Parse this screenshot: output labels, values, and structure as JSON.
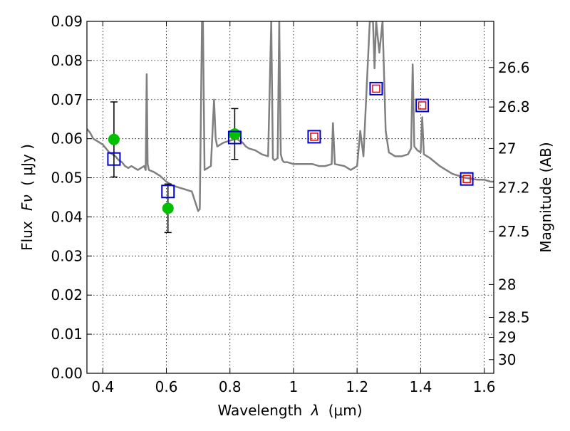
{
  "chart_data": {
    "type": "line",
    "xlabel": "Wavelength",
    "xlabel_symbol": "λ",
    "xlabel_unit": "(μm)",
    "ylabel": "Flux",
    "ylabel_symbol": "Fν",
    "ylabel_unit": "( μJy )",
    "y2label": "Magnitude (AB)",
    "xlim": [
      0.35,
      1.63
    ],
    "ylim": [
      0.0,
      0.09
    ],
    "grid": true,
    "x_ticks": [
      {
        "value": 0.4,
        "label": "0.4"
      },
      {
        "value": 0.6,
        "label": "0.6"
      },
      {
        "value": 0.8,
        "label": "0.8"
      },
      {
        "value": 1.0,
        "label": "1"
      },
      {
        "value": 1.2,
        "label": "1.2"
      },
      {
        "value": 1.4,
        "label": "1.4"
      },
      {
        "value": 1.6,
        "label": "1.6"
      }
    ],
    "y_ticks": [
      {
        "value": 0.0,
        "label": "0.00"
      },
      {
        "value": 0.01,
        "label": "0.01"
      },
      {
        "value": 0.02,
        "label": "0.02"
      },
      {
        "value": 0.03,
        "label": "0.03"
      },
      {
        "value": 0.04,
        "label": "0.04"
      },
      {
        "value": 0.05,
        "label": "0.05"
      },
      {
        "value": 0.06,
        "label": "0.06"
      },
      {
        "value": 0.07,
        "label": "0.07"
      },
      {
        "value": 0.08,
        "label": "0.08"
      },
      {
        "value": 0.09,
        "label": "0.09"
      }
    ],
    "y2_ticks": [
      {
        "flux": 0.0782,
        "label": "26.6"
      },
      {
        "flux": 0.0681,
        "label": "26.8"
      },
      {
        "flux": 0.0575,
        "label": "27"
      },
      {
        "flux": 0.0475,
        "label": "27.2"
      },
      {
        "flux": 0.0363,
        "label": "27.5"
      },
      {
        "flux": 0.0227,
        "label": "28"
      },
      {
        "flux": 0.0143,
        "label": "28.5"
      },
      {
        "flux": 0.0092,
        "label": "29"
      },
      {
        "flux": 0.0035,
        "label": "30"
      }
    ],
    "colors": {
      "model": "#808080",
      "observed": "#00c000",
      "model_phot": "#0000cc",
      "model_phot_inner": "#ee0000",
      "errorbar": "#000000"
    },
    "model_spectrum": {
      "x": [
        0.35,
        0.36,
        0.37,
        0.38,
        0.39,
        0.4,
        0.41,
        0.42,
        0.43,
        0.44,
        0.45,
        0.46,
        0.47,
        0.48,
        0.49,
        0.5,
        0.51,
        0.52,
        0.53,
        0.535,
        0.538,
        0.541,
        0.545,
        0.56,
        0.58,
        0.6,
        0.62,
        0.64,
        0.66,
        0.68,
        0.7,
        0.705,
        0.712,
        0.715,
        0.72,
        0.74,
        0.75,
        0.755,
        0.76,
        0.78,
        0.8,
        0.82,
        0.83,
        0.84,
        0.85,
        0.86,
        0.88,
        0.9,
        0.92,
        0.93,
        0.935,
        0.94,
        0.95,
        0.955,
        0.96,
        0.965,
        0.97,
        0.98,
        1.0,
        1.02,
        1.04,
        1.06,
        1.08,
        1.1,
        1.12,
        1.124,
        1.13,
        1.16,
        1.18,
        1.2,
        1.21,
        1.22,
        1.24,
        1.25,
        1.255,
        1.26,
        1.27,
        1.28,
        1.29,
        1.3,
        1.32,
        1.34,
        1.36,
        1.37,
        1.375,
        1.38,
        1.39,
        1.4,
        1.405,
        1.41,
        1.43,
        1.46,
        1.5,
        1.54,
        1.58,
        1.6,
        1.62,
        1.63
      ],
      "y": [
        0.0625,
        0.0615,
        0.06,
        0.0595,
        0.059,
        0.0585,
        0.0575,
        0.0565,
        0.056,
        0.0555,
        0.0545,
        0.054,
        0.053,
        0.0525,
        0.053,
        0.0525,
        0.052,
        0.0525,
        0.053,
        0.052,
        0.0765,
        0.0535,
        0.052,
        0.0515,
        0.0505,
        0.049,
        0.048,
        0.0475,
        0.047,
        0.0465,
        0.0415,
        0.042,
        0.09,
        0.09,
        0.052,
        0.053,
        0.07,
        0.06,
        0.058,
        0.059,
        0.0595,
        0.06,
        0.0595,
        0.059,
        0.058,
        0.0575,
        0.057,
        0.056,
        0.0555,
        0.09,
        0.055,
        0.0545,
        0.055,
        0.09,
        0.056,
        0.0545,
        0.054,
        0.054,
        0.0535,
        0.0535,
        0.0535,
        0.0535,
        0.053,
        0.053,
        0.0535,
        0.064,
        0.0535,
        0.053,
        0.052,
        0.053,
        0.062,
        0.0555,
        0.09,
        0.09,
        0.078,
        0.09,
        0.082,
        0.09,
        0.062,
        0.0565,
        0.0555,
        0.0555,
        0.056,
        0.0575,
        0.079,
        0.058,
        0.057,
        0.0565,
        0.0655,
        0.056,
        0.055,
        0.053,
        0.051,
        0.05,
        0.0495,
        0.0495,
        0.049,
        0.049
      ]
    },
    "observed_points": {
      "x": [
        0.435,
        0.605,
        0.815
      ],
      "y": [
        0.0598,
        0.0422,
        0.0612
      ],
      "yerr": [
        0.0096,
        0.0062,
        0.0065
      ]
    },
    "model_photometry": {
      "x": [
        0.435,
        0.605,
        0.815,
        1.065,
        1.26,
        1.405,
        1.545
      ],
      "y": [
        0.0548,
        0.0465,
        0.0603,
        0.0605,
        0.0728,
        0.0685,
        0.0497
      ],
      "inner_marker": [
        false,
        false,
        false,
        true,
        true,
        true,
        true
      ]
    }
  }
}
